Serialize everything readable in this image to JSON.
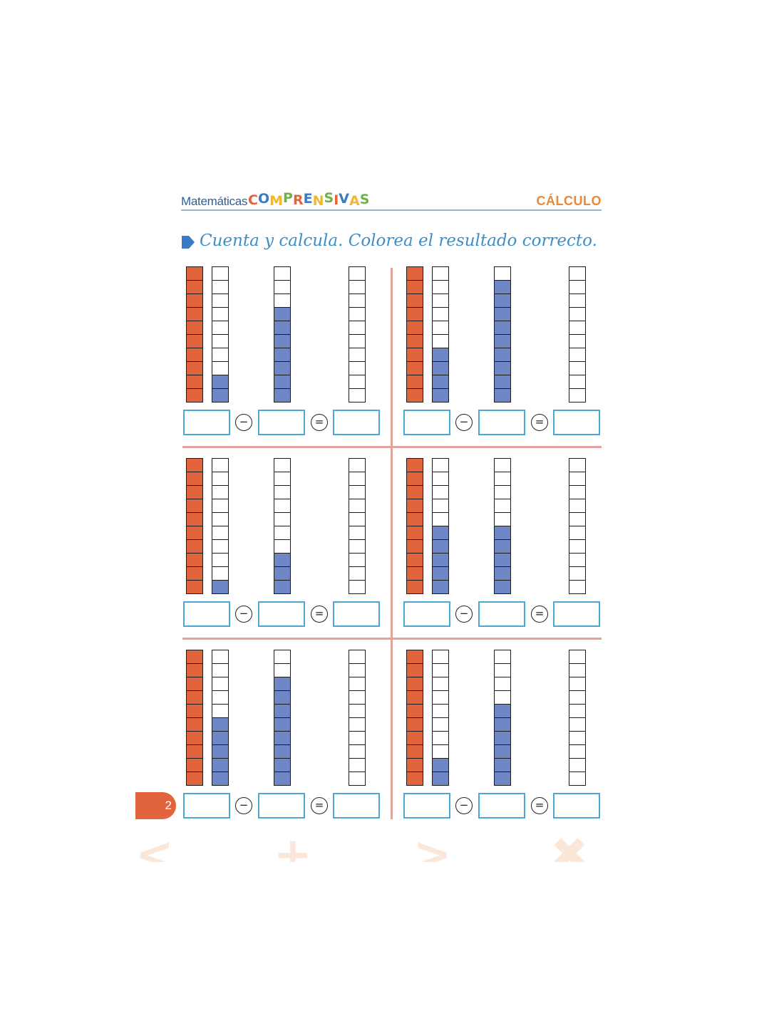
{
  "header": {
    "brand_prefix": "Matemáticas",
    "brand_logo_letters": [
      "C",
      "O",
      "M",
      "P",
      "R",
      "E",
      "N",
      "S",
      "I",
      "V",
      "A",
      "S"
    ],
    "brand_logo_colors": [
      "#e2643c",
      "#3a7cc4",
      "#f2b630",
      "#6fb24a",
      "#e2643c",
      "#3a7cc4",
      "#f2b630",
      "#6fb24a",
      "#e2643c",
      "#3a7cc4",
      "#f2b630",
      "#6fb24a"
    ],
    "section": "CÁLCULO"
  },
  "instruction": {
    "bullet_icon": "play-triangle-icon",
    "text": "Cuenta y calcula. Colorea el resultado correcto."
  },
  "colors": {
    "red_fill": "#e2643c",
    "blue_fill": "#6e86c4",
    "divider": "#e3a29c",
    "box_border": "#4aa7d6",
    "page_tab": "#e2643c"
  },
  "exercises": [
    {
      "minuend_red": 10,
      "first_blue": 2,
      "second_blue": 7,
      "answer_column_cells": 10
    },
    {
      "minuend_red": 10,
      "first_blue": 4,
      "second_blue": 9,
      "answer_column_cells": 10
    },
    {
      "minuend_red": 10,
      "first_blue": 1,
      "second_blue": 3,
      "answer_column_cells": 10
    },
    {
      "minuend_red": 10,
      "first_blue": 5,
      "second_blue": 5,
      "answer_column_cells": 10
    },
    {
      "minuend_red": 10,
      "first_blue": 5,
      "second_blue": 8,
      "answer_column_cells": 10
    },
    {
      "minuend_red": 10,
      "first_blue": 2,
      "second_blue": 6,
      "answer_column_cells": 10
    }
  ],
  "operators": {
    "minus": "−",
    "equals": "="
  },
  "footer": {
    "page_number": "2",
    "decorative_symbols": [
      "<",
      "+",
      ">",
      "✖"
    ]
  }
}
